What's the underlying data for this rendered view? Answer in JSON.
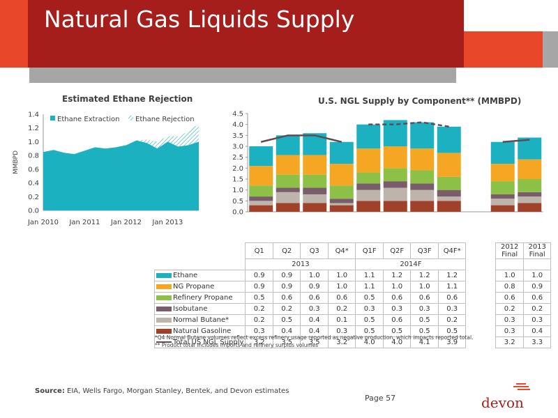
{
  "slide": {
    "title": "Natural Gas Liquids Supply",
    "footnote_1": "*Q4 Normal Butane volumes reflect excess refinery usage reported as negative production, which impacts reported total.",
    "footnote_2": "** Product total includes imports and refinery surplus volumes",
    "source_label": "Source:",
    "source_text": " EIA, Wells Fargo, Morgan Stanley, Bentek, and Devon estimates",
    "page": "Page 57",
    "logo": "devon"
  },
  "chart_data": [
    {
      "type": "area",
      "title": "Estimated Ethane Rejection",
      "ylabel": "MMBPD",
      "ylim": [
        0,
        1.4
      ],
      "yticks": [
        "0.0",
        "0.2",
        "0.4",
        "0.6",
        "0.8",
        "1.0",
        "1.2",
        "1.4"
      ],
      "xticks": [
        "Jan 2010",
        "Jan 2011",
        "Jan 2012",
        "Jan 2013"
      ],
      "legend": [
        "Ethane Extraction",
        "Ethane Rejection"
      ],
      "colors": [
        "#1bb1c1",
        "#1bb1c1"
      ],
      "x": [
        "2010-01",
        "2010-04",
        "2010-07",
        "2010-10",
        "2011-01",
        "2011-04",
        "2011-07",
        "2011-10",
        "2012-01",
        "2012-04",
        "2012-07",
        "2012-10",
        "2013-01",
        "2013-04",
        "2013-07",
        "2013-10"
      ],
      "series": [
        {
          "name": "Ethane Extraction",
          "values": [
            0.85,
            0.88,
            0.84,
            0.82,
            0.87,
            0.92,
            0.9,
            0.92,
            0.95,
            1.02,
            0.98,
            0.9,
            1.0,
            0.93,
            0.95,
            1.0
          ]
        },
        {
          "name": "Ethane Rejection",
          "values": [
            0.0,
            0.0,
            0.0,
            0.0,
            0.0,
            0.0,
            0.0,
            0.0,
            0.0,
            0.0,
            0.05,
            0.1,
            0.08,
            0.15,
            0.2,
            0.26
          ]
        }
      ]
    },
    {
      "type": "bar",
      "title": "U.S. NGL Supply by Component** (MMBPD)",
      "ylim": [
        0,
        4.5
      ],
      "yticks": [
        "0.0",
        "0.5",
        "1.0",
        "1.5",
        "2.0",
        "2.5",
        "3.0",
        "3.5",
        "4.0",
        "4.5"
      ],
      "categories": [
        "Q1",
        "Q2",
        "Q3",
        "Q4*",
        "Q1F",
        "Q2F",
        "Q3F",
        "Q4F*",
        "2012 Final",
        "2013 Final"
      ],
      "groups": [
        "2013",
        "2014F"
      ],
      "series": [
        {
          "name": "Natural Gasoline",
          "color": "#a0422a",
          "values": [
            0.3,
            0.4,
            0.4,
            0.3,
            0.5,
            0.5,
            0.5,
            0.5,
            0.3,
            0.4
          ]
        },
        {
          "name": "Normal Butane*",
          "color": "#bdb5ab",
          "values": [
            0.2,
            0.5,
            0.4,
            0.1,
            0.5,
            0.6,
            0.5,
            0.2,
            0.3,
            0.3
          ]
        },
        {
          "name": "Isobutane",
          "color": "#7a5d6a",
          "values": [
            0.2,
            0.2,
            0.3,
            0.2,
            0.3,
            0.3,
            0.3,
            0.3,
            0.2,
            0.2
          ]
        },
        {
          "name": "Refinery Propane",
          "color": "#8cc047",
          "values": [
            0.5,
            0.6,
            0.6,
            0.6,
            0.5,
            0.6,
            0.6,
            0.6,
            0.6,
            0.6
          ]
        },
        {
          "name": "NG Propane",
          "color": "#f5a623",
          "values": [
            0.9,
            0.9,
            0.9,
            1.0,
            1.1,
            1.0,
            1.0,
            1.1,
            0.8,
            0.9
          ]
        },
        {
          "name": "Ethane",
          "color": "#1bb1c1",
          "values": [
            0.9,
            0.9,
            1.0,
            1.0,
            1.1,
            1.2,
            1.2,
            1.2,
            1.0,
            1.0
          ]
        },
        {
          "name": "Total US NGL Supply",
          "color": "#604a56",
          "values": [
            3.2,
            3.5,
            3.5,
            3.2,
            4.0,
            4.0,
            4.1,
            3.9,
            3.2,
            3.3
          ]
        }
      ]
    }
  ]
}
